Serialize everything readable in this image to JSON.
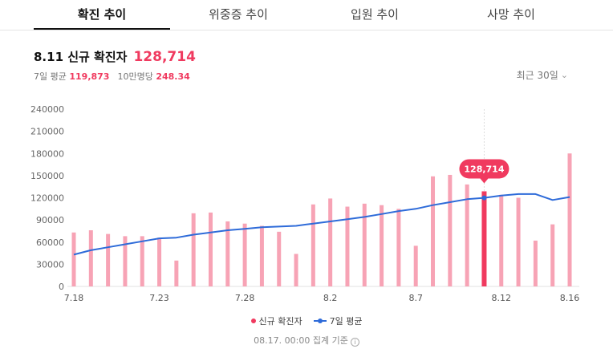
{
  "tabs": [
    {
      "label": "확진 추이",
      "active": true
    },
    {
      "label": "위중증 추이",
      "active": false
    },
    {
      "label": "입원 추이",
      "active": false
    },
    {
      "label": "사망 추이",
      "active": false
    }
  ],
  "summary": {
    "title": "8.11 신규 확진자",
    "value": "128,714",
    "avg_label": "7일 평균",
    "avg_value": "119,873",
    "per_label": "10만명당",
    "per_value": "248.34"
  },
  "period": "최근 30일",
  "legend": {
    "bars": "신규 확진자",
    "line": "7일 평균"
  },
  "footnote": "08.17. 00:00 집계 기준",
  "colors": {
    "bar": "#f7a3b5",
    "bar_highlight": "#f03a5f",
    "line": "#2e6bd9",
    "tooltip": "#f03a5f"
  },
  "chart_data": {
    "type": "bar",
    "ylim": [
      0,
      240000
    ],
    "yticks": [
      "0",
      "30000",
      "60000",
      "90000",
      "120000",
      "150000",
      "180000",
      "210000",
      "240000"
    ],
    "ytick_values": [
      0,
      30000,
      60000,
      90000,
      120000,
      150000,
      180000,
      210000,
      240000
    ],
    "xticks": [
      {
        "index": 0,
        "label": "7.18"
      },
      {
        "index": 5,
        "label": "7.23"
      },
      {
        "index": 10,
        "label": "7.28"
      },
      {
        "index": 15,
        "label": "8.2"
      },
      {
        "index": 20,
        "label": "8.7"
      },
      {
        "index": 25,
        "label": "8.12"
      },
      {
        "index": 29,
        "label": "8.16"
      }
    ],
    "highlight_index": 24,
    "tooltip": "128,714",
    "series": [
      {
        "name": "신규 확진자",
        "type": "bar",
        "values": [
          73000,
          76000,
          71000,
          68000,
          68000,
          66000,
          35000,
          99000,
          100000,
          88000,
          85000,
          82000,
          74000,
          44000,
          111000,
          119000,
          108000,
          112000,
          110000,
          105000,
          55000,
          149000,
          151000,
          138000,
          128714,
          124000,
          120000,
          62000,
          84000,
          180000
        ]
      },
      {
        "name": "7일 평균",
        "type": "line",
        "values": [
          43000,
          49000,
          53000,
          57000,
          61000,
          65000,
          66000,
          70000,
          73000,
          76000,
          78000,
          80000,
          81000,
          82000,
          85000,
          88000,
          91000,
          94000,
          98000,
          102000,
          105000,
          110000,
          114000,
          118000,
          119873,
          123000,
          125000,
          125000,
          117000,
          121000
        ]
      }
    ]
  }
}
